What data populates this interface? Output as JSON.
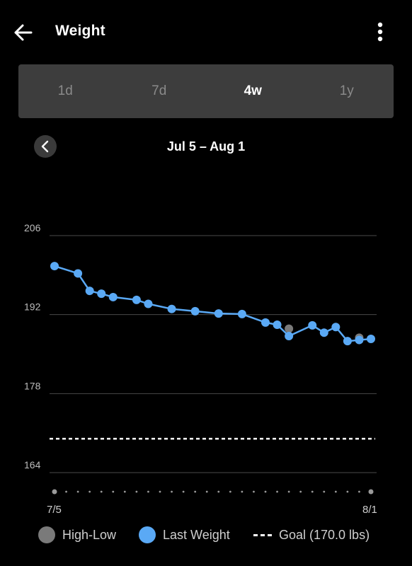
{
  "header": {
    "title": "Weight",
    "back_icon": "arrow-left-icon",
    "menu_icon": "more-vertical-icon"
  },
  "range_tabs": [
    {
      "label": "1d",
      "active": false
    },
    {
      "label": "7d",
      "active": false
    },
    {
      "label": "4w",
      "active": true
    },
    {
      "label": "1y",
      "active": false
    }
  ],
  "period": {
    "label": "Jul 5 – Aug 1",
    "prev_icon": "chevron-left-icon"
  },
  "chart_data": {
    "type": "line",
    "y_ticks": [
      "206",
      "192",
      "178",
      "164"
    ],
    "ylim": [
      164,
      206
    ],
    "x_labels": {
      "start": "7/5",
      "end": "8/1"
    },
    "days": 28,
    "goal": 170.0,
    "series": [
      {
        "name": "Last Weight",
        "color": "#5aa9f5",
        "points": [
          [
            1,
            200.6
          ],
          [
            3,
            199.3
          ],
          [
            4,
            196.2
          ],
          [
            5,
            195.7
          ],
          [
            6,
            195.1
          ],
          [
            8,
            194.6
          ],
          [
            9,
            193.9
          ],
          [
            11,
            193.0
          ],
          [
            13,
            192.6
          ],
          [
            15,
            192.2
          ],
          [
            17,
            192.1
          ],
          [
            19,
            190.6
          ],
          [
            20,
            190.2
          ],
          [
            21,
            188.2
          ],
          [
            23,
            190.1
          ],
          [
            24,
            188.8
          ],
          [
            25,
            189.8
          ],
          [
            26,
            187.3
          ],
          [
            27,
            187.5
          ],
          [
            28,
            187.7
          ]
        ]
      },
      {
        "name": "High-Low",
        "color": "#7a7a7a",
        "points": [
          [
            21,
            189.5
          ],
          [
            27,
            187.9
          ]
        ]
      }
    ]
  },
  "legend": {
    "high_low": {
      "label": "High-Low",
      "color": "#7a7a7a"
    },
    "last_weight": {
      "label": "Last Weight",
      "color": "#5aa9f5"
    },
    "goal": {
      "label": "Goal (170.0 lbs)"
    }
  }
}
